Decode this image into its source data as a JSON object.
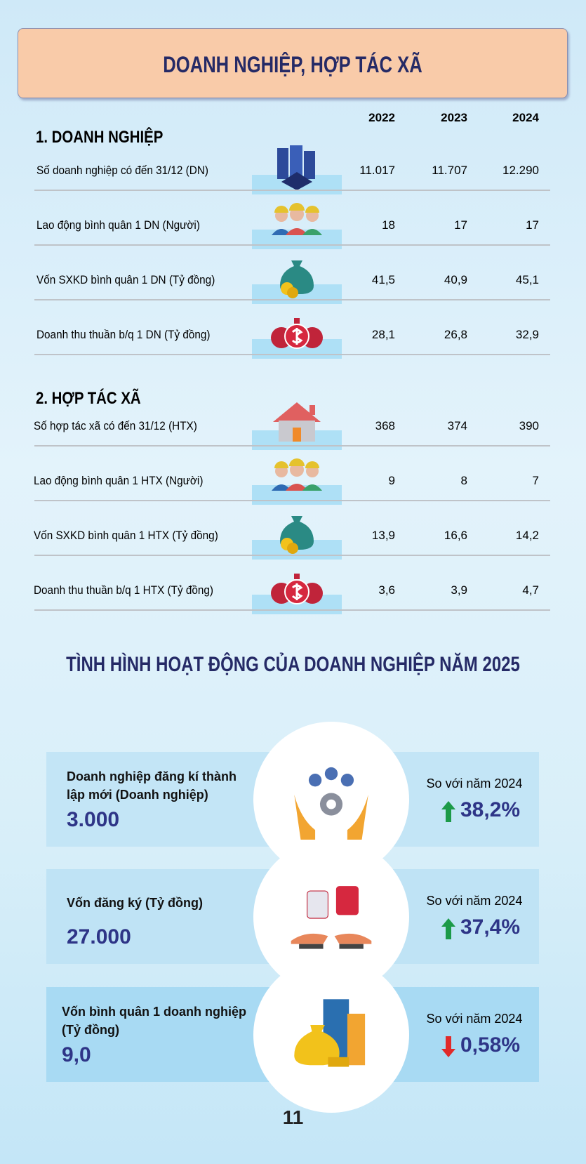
{
  "header": {
    "title": "DOANH NGHIỆP, HỢP TÁC XÃ"
  },
  "years": [
    "2022",
    "2023",
    "2024"
  ],
  "sections": [
    {
      "title": "1. DOANH NGHIỆP",
      "rows": [
        {
          "label": "Số doanh nghiệp có đến 31/12 (DN)",
          "values": [
            "11.017",
            "11.707",
            "12.290"
          ]
        },
        {
          "label": "Lao động bình quân 1 DN (Người)",
          "values": [
            "18",
            "17",
            "17"
          ]
        },
        {
          "label": "Vốn SXKD bình quân 1 DN (Tỷ đồng)",
          "values": [
            "41,5",
            "40,9",
            "45,1"
          ]
        },
        {
          "label": "Doanh thu thuần b/q 1 DN (Tỷ đồng)",
          "values": [
            "28,1",
            "26,8",
            "32,9"
          ]
        }
      ]
    },
    {
      "title": "2. HỢP TÁC XÃ",
      "rows": [
        {
          "label": "Số hợp tác xã có đến 31/12 (HTX)",
          "values": [
            "368",
            "374",
            "390"
          ]
        },
        {
          "label": "Lao động bình quân 1 HTX (Người)",
          "values": [
            "9",
            "8",
            "7"
          ]
        },
        {
          "label": "Vốn SXKD bình quân 1 HTX (Tỷ đồng)",
          "values": [
            "13,9",
            "16,6",
            "14,2"
          ]
        },
        {
          "label": "Doanh thu thuần b/q 1 HTX (Tỷ đồng)",
          "values": [
            "3,6",
            "3,9",
            "4,7"
          ]
        }
      ]
    }
  ],
  "highlights": {
    "title": "TÌNH HÌNH HOẠT ĐỘNG CỦA DOANH NGHIỆP NĂM 2025",
    "cards": [
      {
        "label": "Doanh nghiệp đăng kí thành lập mới (Doanh nghiệp)",
        "value": "3.000",
        "compare": "So với năm 2024",
        "change": "38,2%"
      },
      {
        "label": "Vốn đăng ký (Tỷ đồng)",
        "value": "27.000",
        "compare": "So với năm 2024",
        "change": "37,4%"
      },
      {
        "label": "Vốn bình quân 1 doanh nghiệp (Tỷ đồng)",
        "value": "9,0",
        "compare": "So với năm 2024",
        "change": "0,58%"
      }
    ]
  },
  "page_number": "11"
}
